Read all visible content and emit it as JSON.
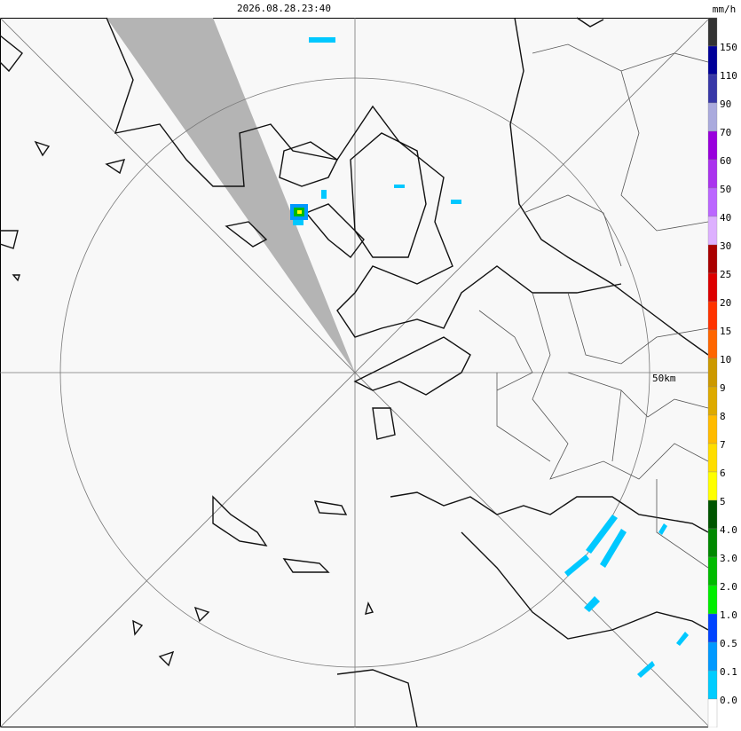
{
  "header": {
    "timestamp": "2026.08.28.23:40"
  },
  "legend": {
    "unit": "mm/h",
    "colors": [
      "#333333",
      "#000099",
      "#3838a8",
      "#aaaadd",
      "#9900dd",
      "#aa33ee",
      "#bb66ff",
      "#ddb0ff",
      "#aa0000",
      "#dd0000",
      "#ff3300",
      "#ff6600",
      "#cc9900",
      "#ddaa00",
      "#ffbb00",
      "#ffdd00",
      "#ffff00",
      "#005500",
      "#008800",
      "#00bb00",
      "#00ee00",
      "#0044ff",
      "#0099ff",
      "#00ccff",
      "#ffffff"
    ],
    "labels": [
      "150",
      "110",
      "90",
      "70",
      "60",
      "50",
      "40",
      "30",
      "25",
      "20",
      "15",
      "10",
      "9",
      "8",
      "7",
      "6",
      "5",
      "4.0",
      "3.0",
      "2.0",
      "1.0",
      "0.5",
      "0.1",
      "0.0"
    ]
  },
  "map": {
    "ring_label": "50km"
  }
}
